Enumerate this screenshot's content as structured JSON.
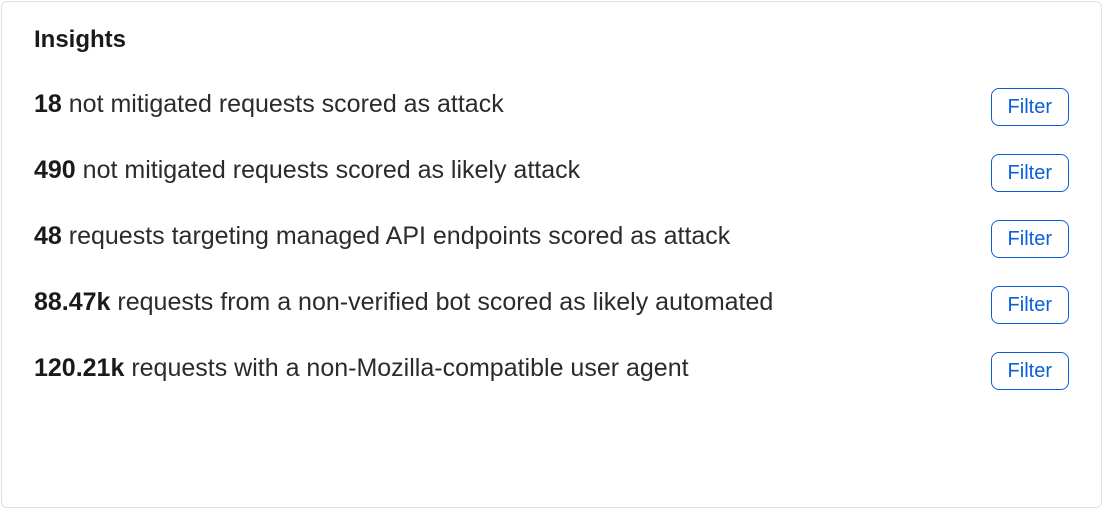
{
  "panel": {
    "title": "Insights",
    "filter_label": "Filter",
    "colors": {
      "border": "#e0e0e0",
      "text": "#2b2b2b",
      "text_bold": "#1a1a1a",
      "button_border": "#0b5fd9",
      "button_text": "#0b5fd9",
      "background": "#ffffff"
    }
  },
  "insights": [
    {
      "count": "18",
      "description": "not mitigated requests scored as attack"
    },
    {
      "count": "490",
      "description": "not mitigated requests scored as likely attack"
    },
    {
      "count": "48",
      "description": "requests targeting managed API endpoints scored as attack"
    },
    {
      "count": "88.47k",
      "description": "requests from a non-verified bot scored as likely automated"
    },
    {
      "count": "120.21k",
      "description": "requests with a non-Mozilla-compatible user agent"
    }
  ]
}
